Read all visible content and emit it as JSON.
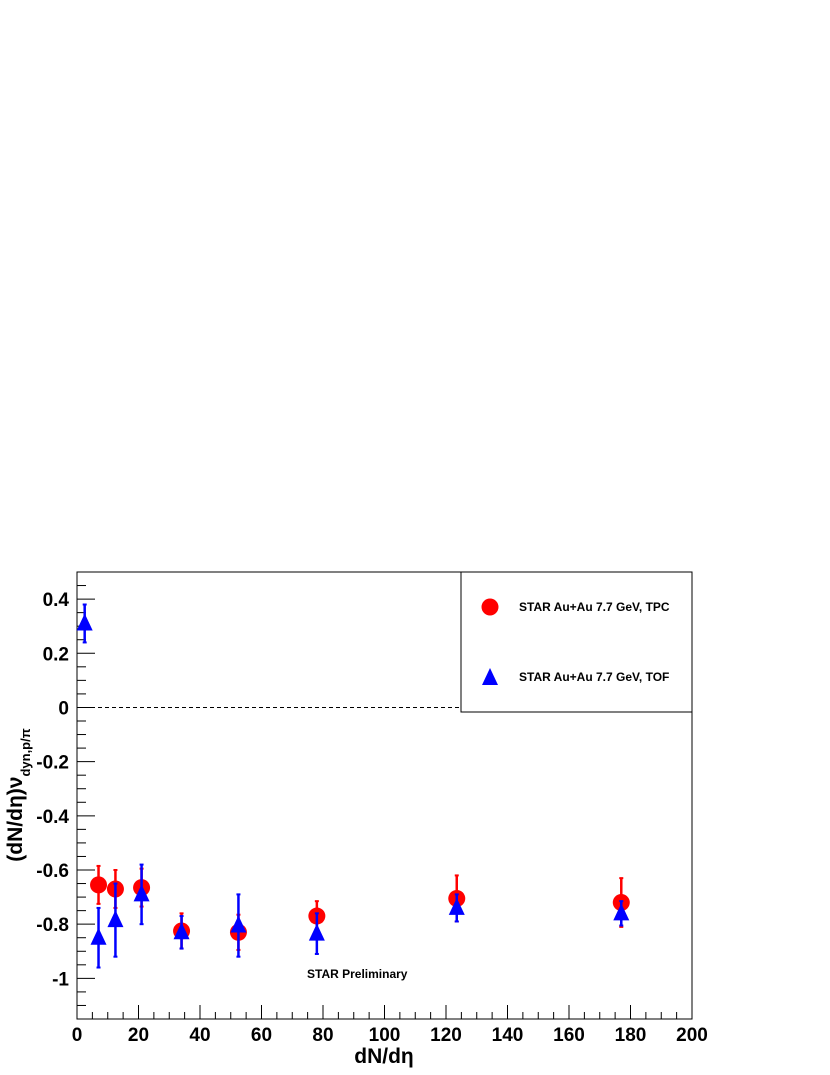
{
  "chart_data": {
    "type": "scatter",
    "title": "",
    "xlabel": "dN/dη",
    "ylabel_main": "(dN/dη)ν",
    "ylabel_sub": "dyn,p/π",
    "xlim": [
      0,
      200
    ],
    "ylim": [
      -1.15,
      0.5
    ],
    "x_ticks": [
      0,
      20,
      40,
      60,
      80,
      100,
      120,
      140,
      160,
      180,
      200
    ],
    "y_ticks": [
      0.4,
      0.2,
      0,
      -0.2,
      -0.4,
      -0.6,
      -0.8,
      -1
    ],
    "x_tick_labels": [
      "0",
      "20",
      "40",
      "60",
      "80",
      "100",
      "120",
      "140",
      "160",
      "180",
      "200"
    ],
    "y_tick_labels": [
      "0.4",
      "0.2",
      "0",
      "-0.2",
      "-0.4",
      "-0.6",
      "-0.8",
      "-1"
    ],
    "reference_line": {
      "y": 0,
      "style": "dashed"
    },
    "grid": false,
    "legend_position": "top-right",
    "series": [
      {
        "name": "STAR Au+Au 7.7 GeV, TPC",
        "marker": "circle",
        "color": "#ff0000",
        "points": [
          {
            "x": 7,
            "y": -0.655,
            "err": 0.07
          },
          {
            "x": 12.5,
            "y": -0.67,
            "err": 0.07
          },
          {
            "x": 21,
            "y": -0.665,
            "err": 0.07
          },
          {
            "x": 34,
            "y": -0.825,
            "err": 0.065
          },
          {
            "x": 52.5,
            "y": -0.83,
            "err": 0.065
          },
          {
            "x": 78,
            "y": -0.77,
            "err": 0.055
          },
          {
            "x": 123.5,
            "y": -0.705,
            "err": 0.085
          },
          {
            "x": 177,
            "y": -0.72,
            "err": 0.09
          }
        ]
      },
      {
        "name": "STAR Au+Au 7.7 GeV, TOF",
        "marker": "triangle",
        "color": "#0000ff",
        "points": [
          {
            "x": 2.5,
            "y": 0.31,
            "err": 0.07
          },
          {
            "x": 7,
            "y": -0.85,
            "err": 0.11
          },
          {
            "x": 12.5,
            "y": -0.785,
            "err": 0.135
          },
          {
            "x": 21,
            "y": -0.69,
            "err": 0.11
          },
          {
            "x": 34,
            "y": -0.83,
            "err": 0.06
          },
          {
            "x": 52.5,
            "y": -0.805,
            "err": 0.115
          },
          {
            "x": 78,
            "y": -0.835,
            "err": 0.075
          },
          {
            "x": 123.5,
            "y": -0.74,
            "err": 0.05
          },
          {
            "x": 177,
            "y": -0.76,
            "err": 0.045
          }
        ]
      }
    ],
    "annotation": "STAR Preliminary"
  }
}
